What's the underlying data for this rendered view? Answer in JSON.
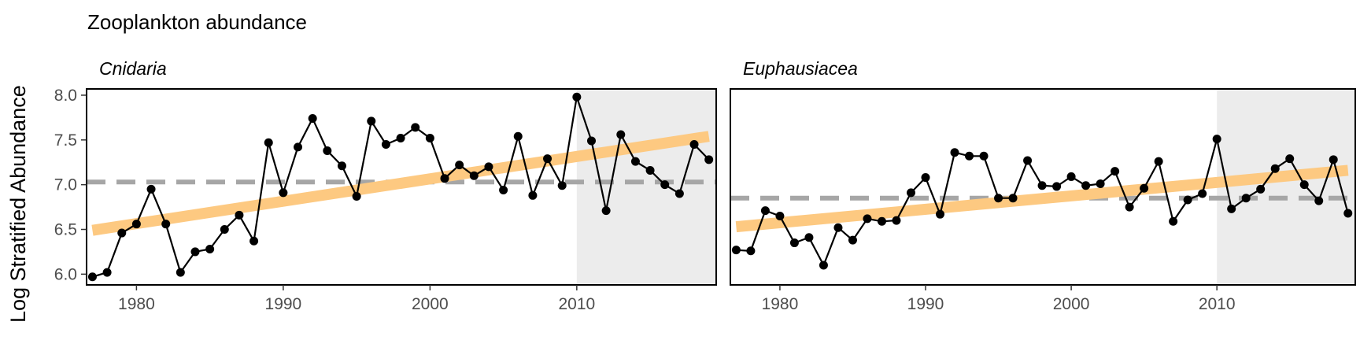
{
  "title": "Zooplankton abundance",
  "ylabel": "Log Stratified Abundance",
  "colors": {
    "trend": "#fdc981",
    "mean_line": "#a6a6a6",
    "shade": "#ececec",
    "series": "#000000"
  },
  "chart_data": [
    {
      "type": "line",
      "panel": "Cnidaria",
      "x": [
        1977,
        1978,
        1979,
        1980,
        1981,
        1982,
        1983,
        1984,
        1985,
        1986,
        1987,
        1988,
        1989,
        1990,
        1991,
        1992,
        1993,
        1994,
        1995,
        1996,
        1997,
        1998,
        1999,
        2000,
        2001,
        2002,
        2003,
        2004,
        2005,
        2006,
        2007,
        2008,
        2009,
        2010,
        2011,
        2012,
        2013,
        2014,
        2015,
        2016,
        2017,
        2018,
        2019
      ],
      "values": [
        5.97,
        6.02,
        6.46,
        6.56,
        6.95,
        6.56,
        6.02,
        6.25,
        6.28,
        6.5,
        6.66,
        6.37,
        7.47,
        6.91,
        7.42,
        7.74,
        7.38,
        7.21,
        6.87,
        7.71,
        7.45,
        7.52,
        7.64,
        7.52,
        7.07,
        7.22,
        7.1,
        7.2,
        6.94,
        7.54,
        6.88,
        7.29,
        6.99,
        7.98,
        7.49,
        6.71,
        7.56,
        7.26,
        7.16,
        7.0,
        6.9,
        7.45,
        7.28
      ],
      "mean": 7.03,
      "trend": {
        "x": [
          1977,
          2019
        ],
        "y": [
          6.49,
          7.54
        ]
      },
      "shaded_range": [
        2010,
        2019
      ],
      "xlim": [
        1976.6,
        2019.5
      ],
      "ylim": [
        5.88,
        8.07
      ],
      "xticks": [
        1980,
        1990,
        2000,
        2010
      ],
      "yticks": [
        "6.0",
        "6.5",
        "7.0",
        "7.5",
        "8.0"
      ]
    },
    {
      "type": "line",
      "panel": "Euphausiacea",
      "x": [
        1977,
        1978,
        1979,
        1980,
        1981,
        1982,
        1983,
        1984,
        1985,
        1986,
        1987,
        1988,
        1989,
        1990,
        1991,
        1992,
        1993,
        1994,
        1995,
        1996,
        1997,
        1998,
        1999,
        2000,
        2001,
        2002,
        2003,
        2004,
        2005,
        2006,
        2007,
        2008,
        2009,
        2010,
        2011,
        2012,
        2013,
        2014,
        2015,
        2016,
        2017,
        2018,
        2019
      ],
      "values": [
        6.27,
        6.26,
        6.71,
        6.65,
        6.35,
        6.41,
        6.1,
        6.52,
        6.38,
        6.62,
        6.59,
        6.6,
        6.91,
        7.08,
        6.67,
        7.36,
        7.32,
        7.32,
        6.85,
        6.85,
        7.27,
        6.99,
        6.98,
        7.09,
        6.99,
        7.01,
        7.15,
        6.75,
        6.96,
        7.26,
        6.59,
        6.83,
        6.9,
        7.51,
        6.73,
        6.85,
        6.95,
        7.18,
        7.29,
        7.0,
        6.82,
        7.28,
        6.68
      ],
      "mean": 6.85,
      "trend": {
        "x": [
          1977,
          2019
        ],
        "y": [
          6.53,
          7.16
        ]
      },
      "shaded_range": [
        2010,
        2019
      ],
      "xlim": [
        1976.6,
        2019.5
      ],
      "ylim": [
        5.88,
        8.07
      ],
      "xticks": [
        1980,
        1990,
        2000,
        2010
      ],
      "yticks": [
        "6.0",
        "6.5",
        "7.0",
        "7.5",
        "8.0"
      ]
    }
  ]
}
